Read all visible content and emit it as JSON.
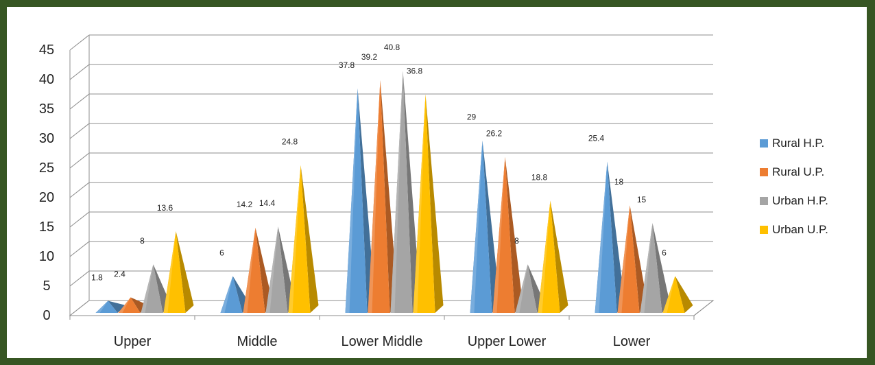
{
  "chart_data": {
    "type": "bar",
    "categories": [
      "Upper",
      "Middle",
      "Lower Middle",
      "Upper Lower",
      "Lower"
    ],
    "series": [
      {
        "name": "Rural H.P.",
        "color": "#5b9bd5",
        "values": [
          1.8,
          6,
          37.8,
          29,
          25.4
        ]
      },
      {
        "name": "Rural U.P.",
        "color": "#ed7d31",
        "values": [
          2.4,
          14.2,
          39.2,
          26.2,
          18
        ]
      },
      {
        "name": "Urban H.P.",
        "color": "#a5a5a5",
        "values": [
          8,
          14.4,
          40.8,
          8,
          15
        ]
      },
      {
        "name": "Urban U.P.",
        "color": "#ffc000",
        "values": [
          13.6,
          24.8,
          36.8,
          18.8,
          6
        ]
      }
    ],
    "yticks": [
      "0",
      "5",
      "10",
      "15",
      "20",
      "25",
      "30",
      "35",
      "40",
      "45"
    ],
    "ylim": [
      0,
      45
    ],
    "title": "",
    "xlabel": "",
    "ylabel": "",
    "grid": true,
    "legend_position": "right",
    "style": "3d-pyramid"
  }
}
